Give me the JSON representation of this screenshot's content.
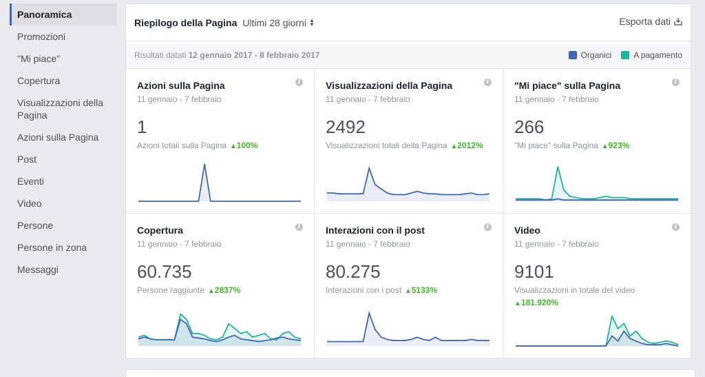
{
  "sidebar": {
    "items": [
      {
        "label": "Panoramica",
        "active": true
      },
      {
        "label": "Promozioni"
      },
      {
        "label": "\"Mi piace\""
      },
      {
        "label": "Copertura"
      },
      {
        "label": "Visualizzazioni della Pagina",
        "two": true
      },
      {
        "label": "Azioni sulla Pagina"
      },
      {
        "label": "Post"
      },
      {
        "label": "Eventi"
      },
      {
        "label": "Video"
      },
      {
        "label": "Persone"
      },
      {
        "label": "Persone in zona"
      },
      {
        "label": "Messaggi"
      }
    ]
  },
  "header": {
    "title": "Riepilogo della Pagina",
    "range": "Ultimi 28 giorni",
    "export": "Esporta dati"
  },
  "subheader": {
    "results_prefix": "Risultati datati",
    "results_range": "12 gennaio 2017 - 8 febbraio 2017",
    "legend_organic": "Organici",
    "legend_paid": "A pagamento"
  },
  "colors": {
    "organic": "#4267b2",
    "paid": "#23b39b",
    "accent": "#4267b2",
    "positive": "#42b72a"
  },
  "cards": [
    {
      "title": "Azioni sulla Pagina",
      "date": "11 gennaio - 7 febbraio",
      "value": "1",
      "sub": "Azioni totali sulla Pagina",
      "delta": "100%",
      "organic": [
        0,
        0,
        0,
        0,
        0,
        0,
        0,
        0,
        0,
        0,
        0,
        1,
        0,
        0,
        0,
        0,
        0,
        0,
        0,
        0,
        0,
        0,
        0,
        0,
        0,
        0,
        0,
        0
      ],
      "paid": null,
      "max": 1
    },
    {
      "title": "Visualizzazioni della Pagina",
      "date": "11 gennaio - 7 febbraio",
      "value": "2492",
      "sub": "Visualizzazioni totali della Pagina",
      "delta": "2012%",
      "organic": [
        10,
        10,
        9,
        9,
        9,
        9,
        9,
        40,
        20,
        15,
        10,
        8,
        8,
        8,
        10,
        12,
        10,
        9,
        9,
        8,
        8,
        8,
        8,
        9,
        10,
        8,
        8,
        9
      ],
      "paid": null,
      "max": 45
    },
    {
      "title": "\"Mi piace\" sulla Pagina",
      "date": "11 gennaio - 7 febbraio",
      "value": "266",
      "sub": "\"Mi piace\" sulla Pagina",
      "delta": "923%",
      "organic": [
        1,
        1,
        1,
        1,
        1,
        1,
        1,
        2,
        1,
        1,
        1,
        1,
        1,
        1,
        1,
        1,
        1,
        1,
        1,
        1,
        1,
        1,
        1,
        1,
        1,
        1,
        1,
        1
      ],
      "paid": [
        2,
        2,
        2,
        2,
        2,
        1,
        2,
        28,
        9,
        4,
        3,
        2,
        2,
        2,
        3,
        4,
        3,
        3,
        3,
        2,
        2,
        2,
        2,
        2,
        2,
        2,
        2,
        2
      ],
      "max": 30
    },
    {
      "title": "Copertura",
      "date": "11 gennaio - 7 febbraio",
      "value": "60.735",
      "sub": "Persone raggiunte",
      "delta": "2837%",
      "organic": [
        8,
        10,
        8,
        7,
        7,
        7,
        7,
        30,
        25,
        10,
        9,
        8,
        6,
        5,
        7,
        10,
        12,
        8,
        7,
        6,
        5,
        6,
        7,
        9,
        10,
        8,
        7,
        6
      ],
      "paid": [
        10,
        12,
        8,
        7,
        7,
        7,
        7,
        36,
        30,
        14,
        14,
        12,
        8,
        7,
        10,
        25,
        20,
        14,
        16,
        10,
        12,
        14,
        8,
        7,
        14,
        16,
        10,
        8
      ],
      "max": 42
    },
    {
      "title": "Interazioni con il post",
      "date": "11 gennaio - 7 febbraio",
      "value": "80.275",
      "sub": "Interazioni con i post",
      "delta": "5133%",
      "organic": [
        4,
        4,
        4,
        4,
        4,
        4,
        4,
        30,
        15,
        8,
        6,
        5,
        5,
        5,
        6,
        8,
        6,
        5,
        8,
        5,
        5,
        5,
        5,
        5,
        6,
        5,
        5,
        5
      ],
      "paid": null,
      "max": 34
    },
    {
      "title": "Video",
      "date": "11 gennaio - 7 febbraio",
      "value": "9101",
      "sub": "Visualizzazioni in totale del video",
      "delta": "181.920%",
      "organic": [
        0,
        0,
        0,
        0,
        0,
        0,
        0,
        0,
        0,
        0,
        0,
        0,
        0,
        0,
        0,
        0,
        8,
        4,
        12,
        6,
        4,
        2,
        1,
        1,
        1,
        2,
        1,
        0
      ],
      "paid": [
        0,
        0,
        0,
        0,
        0,
        0,
        0,
        0,
        0,
        0,
        0,
        0,
        0,
        0,
        0,
        0,
        24,
        14,
        18,
        8,
        12,
        6,
        3,
        2,
        3,
        4,
        3,
        1
      ],
      "max": 30
    }
  ]
}
